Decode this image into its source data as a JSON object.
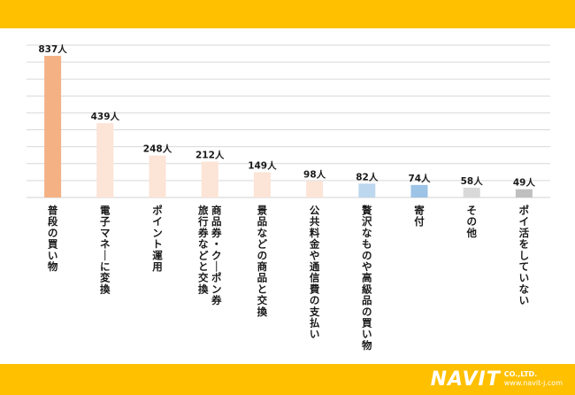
{
  "colors": {
    "band": "#FFC000",
    "grid": "#D9D9D9",
    "text": "#1a1a1a"
  },
  "branding": {
    "logo_text": "NAVIT",
    "company": "CO.,LTD.",
    "url": "www.navit-j.com"
  },
  "chart_data": {
    "type": "bar",
    "title": "",
    "xlabel": "",
    "ylabel": "",
    "ylim": [
      0,
      900
    ],
    "grid": true,
    "legend": "none",
    "categories": [
      "普段の買い物",
      "電子マネーに変換",
      "ポイント運用",
      "商品券・クーポン券旅行券などと交換",
      "景品などの商品と交換",
      "公共料金や通信費の支払い",
      "贅沢なものや高級品の買い物",
      "寄付",
      "その他",
      "ポイ活をしていない"
    ],
    "label_lines": [
      [
        "普段の買い物"
      ],
      [
        "電子マネーに変換"
      ],
      [
        "ポイント運用"
      ],
      [
        "旅行券などと交換",
        "商品券・クーポン券"
      ],
      [
        "景品などの商品と交換"
      ],
      [
        "公共料金や通信費の支払い"
      ],
      [
        "贅沢なものや高級品の買い物"
      ],
      [
        "寄付"
      ],
      [
        "その他"
      ],
      [
        "ポイ活をしていない"
      ]
    ],
    "values": [
      837,
      439,
      248,
      212,
      149,
      98,
      82,
      74,
      58,
      49
    ],
    "value_labels": [
      "837人",
      "439人",
      "248人",
      "212人",
      "149人",
      "98人",
      "82人",
      "74人",
      "58人",
      "49人"
    ],
    "bar_colors": [
      "#F4B183",
      "#FCE4D6",
      "#FCE4D6",
      "#FCE4D6",
      "#FCE4D6",
      "#FCE4D6",
      "#BDD7EE",
      "#9DC3E6",
      "#D9D9D9",
      "#BFBFBF"
    ]
  }
}
